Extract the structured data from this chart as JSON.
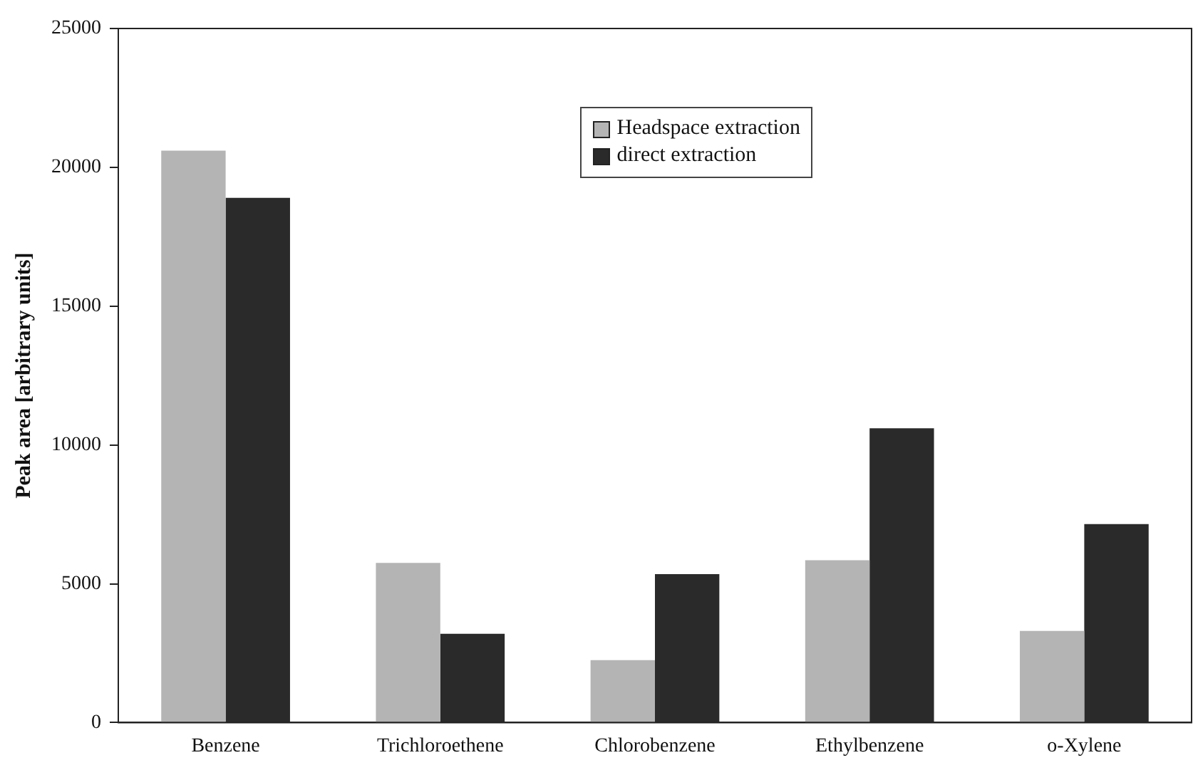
{
  "chart_data": {
    "type": "bar",
    "ylabel": "Peak area [arbitrary units]",
    "categories": [
      "Benzene",
      "Trichloroethene",
      "Chlorobenzene",
      "Ethylbenzene",
      "o-Xylene"
    ],
    "series": [
      {
        "name": "Headspace extraction",
        "color": "#b4b4b4",
        "values": [
          20600,
          5750,
          2250,
          5850,
          3300
        ]
      },
      {
        "name": "direct extraction",
        "color": "#2a2a2a",
        "values": [
          18900,
          3200,
          5350,
          10600,
          7150
        ]
      }
    ],
    "ylim": [
      0,
      25000
    ],
    "yticks": [
      0,
      5000,
      10000,
      15000,
      20000,
      25000
    ],
    "grid": false,
    "legend": "top"
  }
}
